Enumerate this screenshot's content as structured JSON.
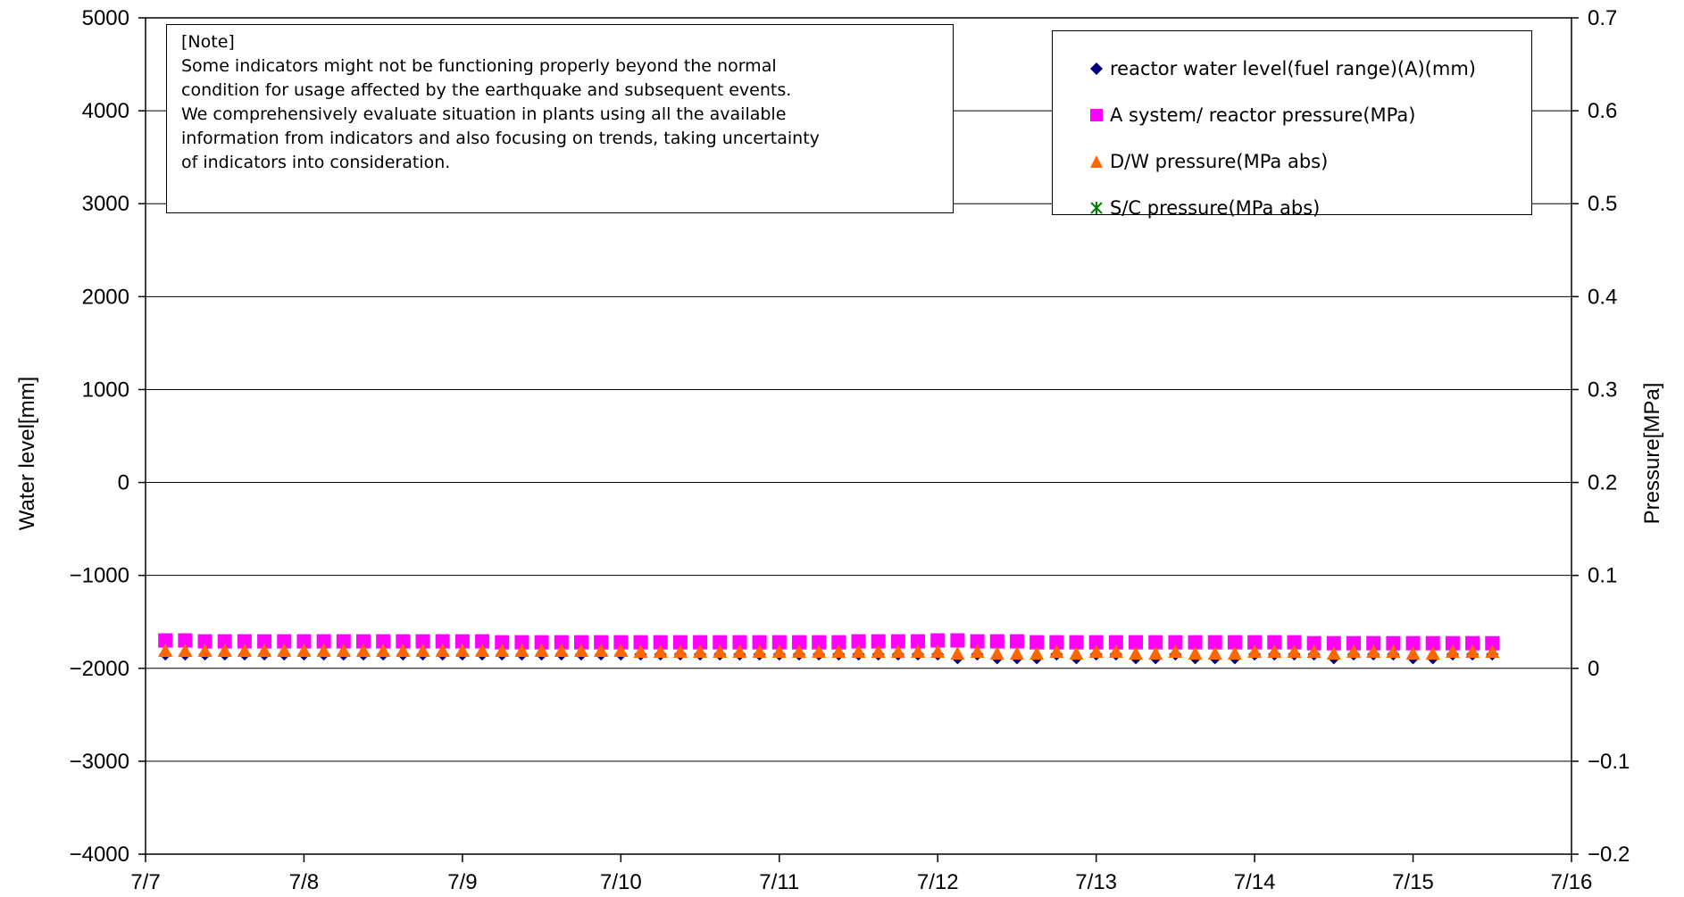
{
  "chart_data": {
    "type": "scatter",
    "title": "",
    "xlabel": "",
    "ylabel": "Water level[mm]",
    "y2label": "Pressure[MPa]",
    "x_ticks": [
      "7/7",
      "7/8",
      "7/9",
      "7/10",
      "7/11",
      "7/12",
      "7/13",
      "7/14",
      "7/15",
      "7/16"
    ],
    "xlim": [
      "7/7",
      "7/16"
    ],
    "ylim": [
      -4000,
      5000
    ],
    "y_ticks": [
      5000,
      4000,
      3000,
      2000,
      1000,
      0,
      -1000,
      -2000,
      -3000,
      -4000
    ],
    "y2lim": [
      -0.2,
      0.7
    ],
    "y2_ticks": [
      "0.7",
      "0.6",
      "0.5",
      "0.4",
      "0.3",
      "0.2",
      "0.1",
      "0",
      "-0.1",
      "-0.2"
    ],
    "grid": "horizontal major gridlines",
    "legend_position": "top-right",
    "x_start": "7/7 03:00",
    "x_step_hours": 3,
    "series": [
      {
        "name": "reactor water level(fuel range)(A)(mm)",
        "axis": "left",
        "marker": "diamond",
        "color": "#000080",
        "values": [
          -1850,
          -1850,
          -1850,
          -1850,
          -1850,
          -1850,
          -1850,
          -1850,
          -1850,
          -1850,
          -1850,
          -1850,
          -1850,
          -1850,
          -1850,
          -1850,
          -1850,
          -1850,
          -1850,
          -1850,
          -1850,
          -1850,
          -1850,
          -1850,
          -1850,
          -1850,
          -1850,
          -1850,
          -1850,
          -1850,
          -1850,
          -1850,
          -1850,
          -1850,
          -1850,
          -1850,
          -1850,
          -1850,
          -1850,
          -1850,
          -1890,
          -1850,
          -1890,
          -1890,
          -1890,
          -1850,
          -1890,
          -1850,
          -1850,
          -1890,
          -1890,
          -1850,
          -1890,
          -1890,
          -1890,
          -1850,
          -1850,
          -1850,
          -1850,
          -1890,
          -1850,
          -1850,
          -1850,
          -1890,
          -1890,
          -1850,
          -1850,
          -1850
        ]
      },
      {
        "name": "A system/ reactor pressure(MPa)",
        "axis": "right",
        "marker": "square",
        "color": "#FF00FF",
        "values": [
          0.03,
          0.03,
          0.029,
          0.029,
          0.029,
          0.029,
          0.029,
          0.029,
          0.029,
          0.029,
          0.029,
          0.029,
          0.029,
          0.029,
          0.029,
          0.029,
          0.029,
          0.028,
          0.028,
          0.028,
          0.028,
          0.028,
          0.028,
          0.028,
          0.028,
          0.028,
          0.028,
          0.028,
          0.028,
          0.028,
          0.028,
          0.028,
          0.028,
          0.028,
          0.028,
          0.029,
          0.029,
          0.029,
          0.029,
          0.03,
          0.03,
          0.029,
          0.029,
          0.029,
          0.028,
          0.028,
          0.028,
          0.028,
          0.028,
          0.028,
          0.028,
          0.028,
          0.028,
          0.028,
          0.028,
          0.028,
          0.028,
          0.028,
          0.027,
          0.027,
          0.027,
          0.027,
          0.027,
          0.027,
          0.027,
          0.027,
          0.027,
          0.027
        ]
      },
      {
        "name": "D/W pressure(MPa abs)",
        "axis": "right",
        "marker": "triangle",
        "color": "#FF6600",
        "values": [
          0.019,
          0.019,
          0.019,
          0.019,
          0.019,
          0.019,
          0.019,
          0.019,
          0.019,
          0.019,
          0.019,
          0.019,
          0.019,
          0.019,
          0.019,
          0.019,
          0.019,
          0.019,
          0.019,
          0.019,
          0.019,
          0.019,
          0.019,
          0.019,
          0.018,
          0.018,
          0.018,
          0.018,
          0.018,
          0.018,
          0.018,
          0.018,
          0.018,
          0.018,
          0.018,
          0.018,
          0.018,
          0.018,
          0.018,
          0.018,
          0.016,
          0.018,
          0.016,
          0.016,
          0.016,
          0.018,
          0.016,
          0.018,
          0.018,
          0.016,
          0.016,
          0.018,
          0.016,
          0.016,
          0.016,
          0.018,
          0.018,
          0.018,
          0.018,
          0.016,
          0.018,
          0.018,
          0.018,
          0.016,
          0.016,
          0.018,
          0.018,
          0.018
        ]
      },
      {
        "name": "S/C pressure(MPa abs)",
        "axis": "right",
        "marker": "asterisk",
        "color": "#008000",
        "values": []
      }
    ]
  },
  "note": {
    "lines": [
      "[Note]",
      "Some indicators might not be functioning properly beyond the normal",
      "condition for usage affected by the earthquake and subsequent events.",
      "We comprehensively evaluate situation in plants using all the available",
      "information from indicators and also focusing on trends, taking uncertainty",
      "of indicators into consideration."
    ]
  }
}
